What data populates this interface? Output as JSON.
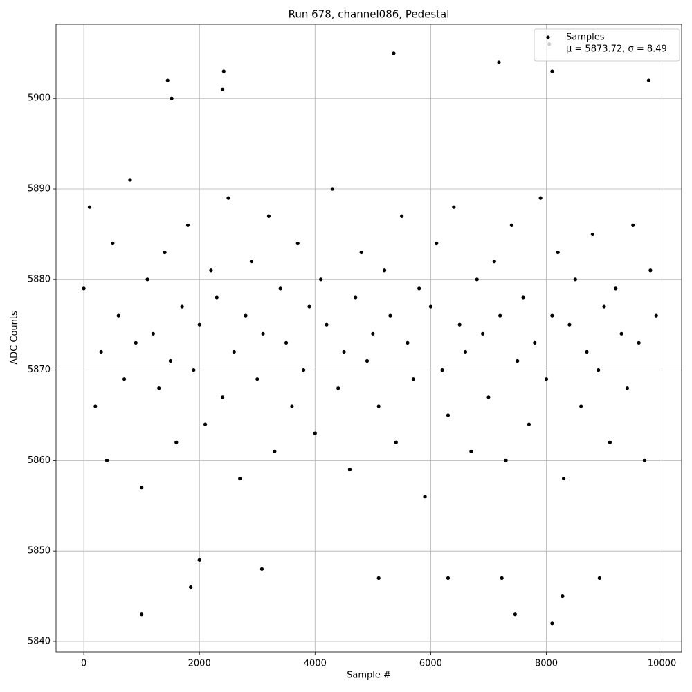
{
  "chart_data": {
    "type": "scatter",
    "title": "Run 678, channel086, Pedestal",
    "xlabel": "Sample #",
    "ylabel": "ADC Counts",
    "xlim": [
      -480,
      10340
    ],
    "ylim": [
      5838.85,
      5908.2
    ],
    "xticks": [
      0,
      2000,
      4000,
      6000,
      8000,
      10000
    ],
    "yticks": [
      5840,
      5850,
      5860,
      5870,
      5880,
      5890,
      5900
    ],
    "grid": true,
    "legend": "upper right",
    "annotation": "μ = 5873.72, σ = 8.49",
    "series": [
      {
        "name": "Samples",
        "color": "#000000",
        "x": [
          0,
          100,
          200,
          300,
          400,
          500,
          600,
          700,
          800,
          900,
          1000,
          1100,
          1200,
          1300,
          1400,
          1500,
          1600,
          1700,
          1800,
          1900,
          2000,
          2100,
          2200,
          2300,
          2400,
          2500,
          2600,
          2700,
          2800,
          2900,
          3000,
          3100,
          3200,
          3300,
          3400,
          3500,
          3600,
          3700,
          3800,
          3900,
          4000,
          4100,
          4200,
          4300,
          4400,
          4500,
          4600,
          4700,
          4800,
          4900,
          5000,
          5100,
          5200,
          5300,
          5400,
          5500,
          5600,
          5700,
          5800,
          5900,
          6000,
          6100,
          6200,
          6300,
          6400,
          6500,
          6600,
          6700,
          6800,
          6900,
          7000,
          7100,
          7200,
          7300,
          7400,
          7500,
          7600,
          7700,
          7800,
          7900,
          8000,
          8100,
          8200,
          8300,
          8400,
          8500,
          8600,
          8700,
          8800,
          8900,
          9000,
          9100,
          9200,
          9300,
          9400,
          9500,
          9600,
          9700,
          9800,
          9900,
          1000,
          1450,
          1520,
          2420,
          2400,
          5360,
          7180,
          8050,
          8100,
          9770,
          8100,
          7460,
          1850,
          2000,
          3080,
          8280,
          5100,
          6300,
          7230,
          8920
        ],
        "values": [
          5879,
          5888,
          5866,
          5872,
          5860,
          5884,
          5876,
          5869,
          5891,
          5873,
          5857,
          5880,
          5874,
          5868,
          5883,
          5871,
          5862,
          5877,
          5886,
          5870,
          5875,
          5864,
          5881,
          5878,
          5867,
          5889,
          5872,
          5858,
          5876,
          5882,
          5869,
          5874,
          5887,
          5861,
          5879,
          5873,
          5866,
          5884,
          5870,
          5877,
          5863,
          5880,
          5875,
          5890,
          5868,
          5872,
          5859,
          5878,
          5883,
          5871,
          5874,
          5866,
          5881,
          5876,
          5862,
          5887,
          5873,
          5869,
          5879,
          5856,
          5877,
          5884,
          5870,
          5865,
          5888,
          5875,
          5872,
          5861,
          5880,
          5874,
          5867,
          5882,
          5876,
          5860,
          5886,
          5871,
          5878,
          5864,
          5873,
          5889,
          5869,
          5876,
          5883,
          5858,
          5875,
          5880,
          5866,
          5872,
          5885,
          5870,
          5877,
          5862,
          5879,
          5874,
          5868,
          5886,
          5873,
          5860,
          5881,
          5876,
          5843,
          5902,
          5900,
          5903,
          5901,
          5905,
          5904,
          5906,
          5903,
          5902,
          5842,
          5843,
          5846,
          5849,
          5848,
          5845,
          5847,
          5847,
          5847,
          5847
        ]
      }
    ]
  }
}
